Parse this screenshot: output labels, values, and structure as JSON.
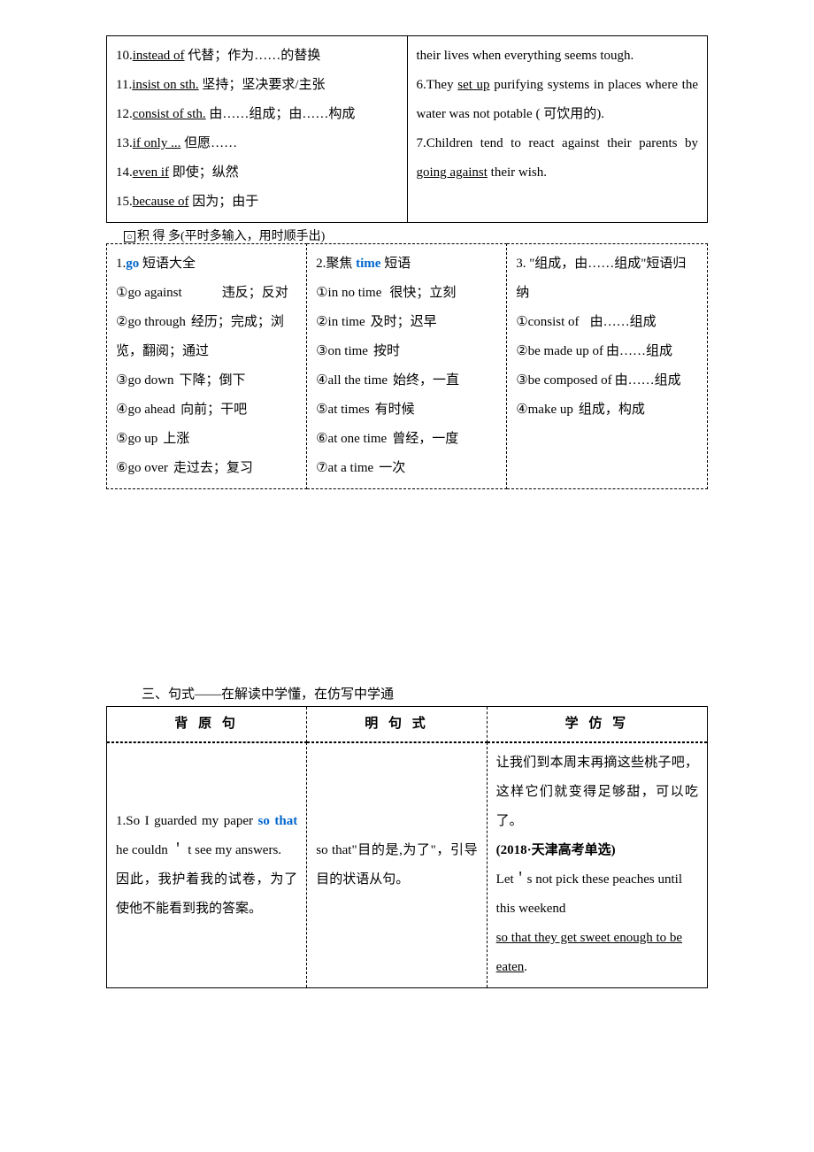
{
  "topTable": {
    "leftRows": [
      {
        "pre": "10.",
        "u": "instead of",
        "post": " 代替；作为……的替换"
      },
      {
        "pre": "11.",
        "u": "insist on sth.",
        "post": " 坚持；坚决要求/主张"
      },
      {
        "pre": "12.",
        "u": "consist of sth.",
        "post": " 由……组成；由……构成"
      },
      {
        "pre": "13.",
        "u": "if only ...",
        "post": " 但愿……"
      },
      {
        "pre": "14.",
        "u": "even if",
        "post": " 即使；纵然"
      },
      {
        "pre": "15.",
        "u": "because of",
        "post": " 因为；由于"
      }
    ],
    "rightRows": [
      {
        "text": "their lives when everything seems tough."
      },
      {
        "pre": "6.They ",
        "u": "set up",
        "post": " purifying systems in places where the water was not potable ( 可饮用的)."
      },
      {
        "pre": "7.Children tend to react against their parents by ",
        "u": "going against",
        "post": " their wish."
      }
    ]
  },
  "jiduo": "积 得 多(平时多输入，用时顺手出)",
  "dashedTable": {
    "col1": {
      "title_pre": "1.",
      "title_blue": "go",
      "title_post": " 短语大全",
      "items": [
        {
          "label": "①go against",
          "desc": "违反；反对",
          "gap": "3em"
        },
        {
          "label": "②go through",
          "desc": "经历；完成；浏览，翻阅；通过",
          "gap": "0.4em"
        },
        {
          "label": "③go down",
          "desc": "下降；倒下",
          "gap": "0.4em"
        },
        {
          "label": "④go ahead",
          "desc": "向前；干吧",
          "gap": "0.4em"
        },
        {
          "label": "⑤go up",
          "desc": "上涨",
          "gap": "0.4em"
        },
        {
          "label": "⑥go over",
          "desc": "走过去；复习",
          "gap": "0.4em"
        }
      ]
    },
    "col2": {
      "title_pre": "2.聚焦 ",
      "title_blue": "time",
      "title_post": " 短语",
      "items": [
        {
          "label": "①in no time",
          "desc": "很快；立刻",
          "gap": "0.6em"
        },
        {
          "label": "②in time",
          "desc": "及时；迟早",
          "gap": "0.4em"
        },
        {
          "label": "③on time",
          "desc": "按时",
          "gap": "0.4em"
        },
        {
          "label": "④all the time",
          "desc": "始终，一直",
          "gap": "0.4em"
        },
        {
          "label": "⑤at times",
          "desc": "有时候",
          "gap": "0.4em"
        },
        {
          "label": "⑥at one time",
          "desc": "曾经，一度",
          "gap": "0.4em"
        },
        {
          "label": "⑦at a time",
          "desc": "一次",
          "gap": "0.4em"
        }
      ]
    },
    "col3": {
      "title": "3. \"组成，由……组成\"短语归纳",
      "items": [
        {
          "label": "①consist of",
          "desc": "由……组成",
          "gap": "0.8em"
        },
        {
          "label": "②be made up of",
          "desc": "由……组成",
          "gap": "0.2em"
        },
        {
          "label": "③be composed of",
          "desc": "由……组成",
          "gap": "0.2em"
        },
        {
          "label": "④make up",
          "desc": "组成，构成",
          "gap": "0.4em"
        }
      ]
    }
  },
  "section3": {
    "title": "三、句式——在解读中学懂，在仿写中学通",
    "headers": [
      "背 原 句",
      "明 句 式",
      "学 仿 写"
    ],
    "row1": {
      "left_pre": "1.So I guarded my paper ",
      "left_blue1": "so that",
      "left_mid": " he couldn ＇ t see my answers.",
      "left_zh": "因此，我护着我的试卷，为了使他不能看到我的答案。",
      "mid": "so that\"目的是,为了\"，引导目的状语从句。",
      "right_1": "让我们到本周末再摘这些桃子吧，这样它们就变得足够甜，可以吃了。",
      "right_2": "(2018·天津高考单选)",
      "right_3": "Let＇s not pick these peaches until this weekend",
      "right_u": "so that they get sweet enough to be eaten",
      "right_4": "."
    }
  }
}
